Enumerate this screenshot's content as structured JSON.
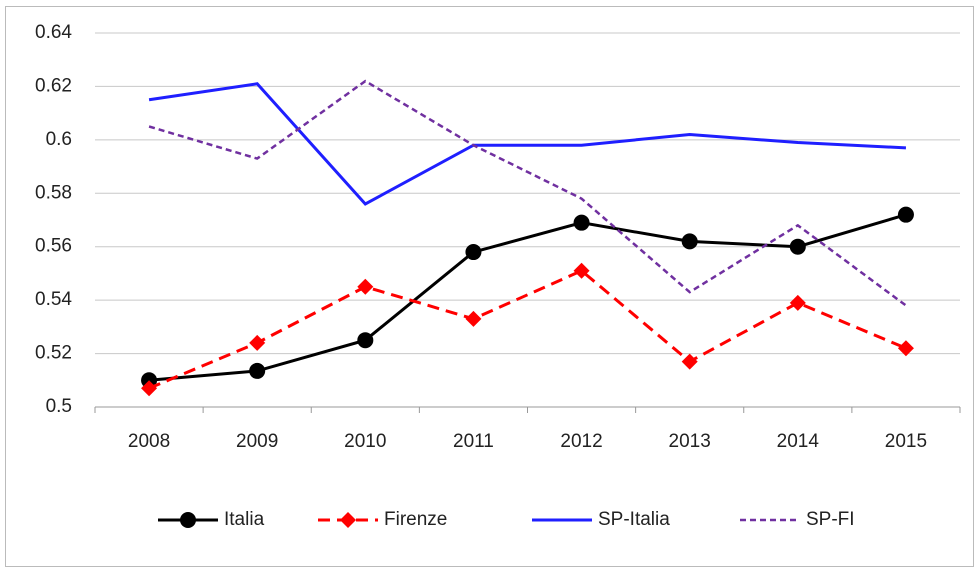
{
  "chart_data": {
    "type": "line",
    "categories": [
      "2008",
      "2009",
      "2010",
      "2011",
      "2012",
      "2013",
      "2014",
      "2015"
    ],
    "series": [
      {
        "name": "Italia",
        "color": "#000000",
        "line_style": "solid",
        "marker": "circle",
        "values": [
          0.51,
          0.5135,
          0.525,
          0.558,
          0.569,
          0.562,
          0.56,
          0.572
        ]
      },
      {
        "name": "Firenze",
        "color": "#ff0000",
        "line_style": "dashed",
        "marker": "diamond",
        "values": [
          0.507,
          0.524,
          0.545,
          0.533,
          0.551,
          0.517,
          0.539,
          0.522
        ]
      },
      {
        "name": "SP-Italia",
        "color": "#1f1fff",
        "line_style": "solid",
        "marker": "none",
        "values": [
          0.615,
          0.621,
          0.576,
          0.598,
          0.598,
          0.602,
          0.599,
          0.597
        ]
      },
      {
        "name": "SP-FI",
        "color": "#7030a0",
        "line_style": "dotted",
        "marker": "none",
        "values": [
          0.605,
          0.593,
          0.622,
          0.598,
          0.578,
          0.543,
          0.568,
          0.538
        ]
      }
    ],
    "ylim": [
      0.5,
      0.64
    ],
    "yticks": [
      0.5,
      0.52,
      0.54,
      0.56,
      0.58,
      0.6,
      0.62,
      0.64
    ],
    "grid": true,
    "legend": "bottom"
  }
}
